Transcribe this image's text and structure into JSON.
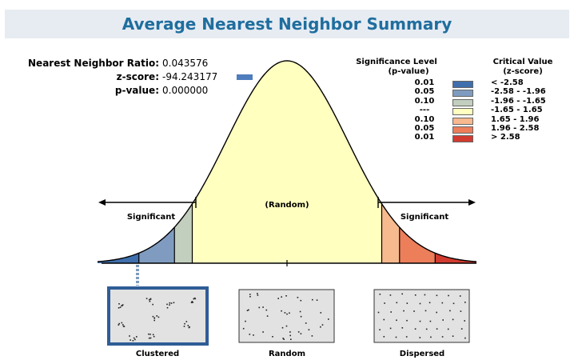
{
  "title": "Average Nearest Neighbor Summary",
  "stats": {
    "ratio_label": "Nearest Neighbor Ratio:",
    "ratio_value": "0.043576",
    "z_label": "z-score:",
    "z_value": "-94.243177",
    "p_label": "p-value:",
    "p_value": "0.000000"
  },
  "legend": {
    "sig_header": "Significance Level",
    "sig_subheader": "(p-value)",
    "crit_header": "Critical Value",
    "crit_subheader": "(z-score)",
    "rows": [
      {
        "p": "0.01",
        "z": "< -2.58",
        "color": "#3f6fad"
      },
      {
        "p": "0.05",
        "z": "-2.58 - -1.96",
        "color": "#7f9cc0"
      },
      {
        "p": "0.10",
        "z": "-1.96 - -1.65",
        "color": "#c3cfbe"
      },
      {
        "p": "---",
        "z": "-1.65 - 1.65",
        "color": "#ffffc0"
      },
      {
        "p": "0.10",
        "z": "1.65 - 1.96",
        "color": "#f7b98e"
      },
      {
        "p": "0.05",
        "z": "1.96 - 2.58",
        "color": "#ec7e5a"
      },
      {
        "p": "0.01",
        "z": "> 2.58",
        "color": "#d23b2f"
      }
    ]
  },
  "curve": {
    "random_label": "(Random)",
    "left_label": "Significant",
    "right_label": "Significant"
  },
  "panels": [
    {
      "label": "Clustered",
      "selected": true
    },
    {
      "label": "Random",
      "selected": false
    },
    {
      "label": "Dispersed",
      "selected": false
    }
  ]
}
